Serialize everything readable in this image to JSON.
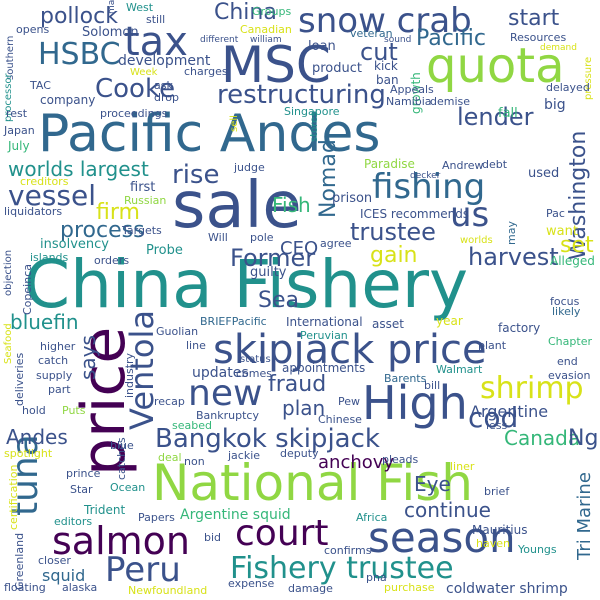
{
  "palette": {
    "purple": "#440154",
    "indigo": "#3b528b",
    "blue": "#31688e",
    "teal": "#21918c",
    "green": "#35b779",
    "lime": "#90d743",
    "yellow": "#d8e219"
  },
  "words": [
    {
      "text": "China Fishery",
      "color": "teal"
    },
    {
      "text": "Pacific Andes",
      "color": "blue"
    },
    {
      "text": "sale",
      "color": "indigo"
    },
    {
      "text": "National Fish",
      "color": "lime"
    },
    {
      "text": "skipjack price",
      "color": "indigo"
    },
    {
      "text": "price",
      "color": "purple"
    },
    {
      "text": "MSC",
      "color": "indigo"
    },
    {
      "text": "quota",
      "color": "lime"
    },
    {
      "text": "season",
      "color": "indigo"
    },
    {
      "text": "tax",
      "color": "indigo"
    },
    {
      "text": "snow crab",
      "color": "indigo"
    },
    {
      "text": "High",
      "color": "indigo"
    },
    {
      "text": "court",
      "color": "purple"
    },
    {
      "text": "salmon",
      "color": "purple"
    },
    {
      "text": "tuna",
      "color": "blue"
    },
    {
      "text": "new",
      "color": "indigo"
    },
    {
      "text": "fishing",
      "color": "blue"
    },
    {
      "text": "Fishery trustee",
      "color": "teal"
    },
    {
      "text": "Peru",
      "color": "indigo"
    },
    {
      "text": "Ventola",
      "color": "indigo"
    },
    {
      "text": "HSBC",
      "color": "blue"
    },
    {
      "text": "restructuring",
      "color": "indigo"
    },
    {
      "text": "Cooke",
      "color": "indigo"
    },
    {
      "text": "Bangkok skipjack",
      "color": "indigo"
    },
    {
      "text": "shrimp",
      "color": "yellow"
    },
    {
      "text": "us",
      "color": "indigo"
    },
    {
      "text": "vessel",
      "color": "indigo"
    },
    {
      "text": "trustee",
      "color": "indigo"
    },
    {
      "text": "cod",
      "color": "indigo"
    },
    {
      "text": "rise",
      "color": "indigo"
    },
    {
      "text": "Pacific",
      "color": "blue"
    },
    {
      "text": "cut",
      "color": "indigo"
    },
    {
      "text": "lender",
      "color": "indigo"
    },
    {
      "text": "start",
      "color": "indigo"
    },
    {
      "text": "Washington",
      "color": "indigo"
    },
    {
      "text": "pollock",
      "color": "indigo"
    },
    {
      "text": "China",
      "color": "indigo"
    },
    {
      "text": "worlds largest",
      "color": "teal"
    },
    {
      "text": "Former",
      "color": "indigo"
    },
    {
      "text": "firm",
      "color": "yellow"
    },
    {
      "text": "Nomad",
      "color": "blue"
    },
    {
      "text": "process",
      "color": "blue"
    },
    {
      "text": "harvest",
      "color": "indigo"
    },
    {
      "text": "gain",
      "color": "yellow"
    },
    {
      "text": "set",
      "color": "yellow"
    },
    {
      "text": "bluefin",
      "color": "teal"
    },
    {
      "text": "Sea",
      "color": "indigo"
    },
    {
      "text": "fraud",
      "color": "indigo"
    },
    {
      "text": "says",
      "color": "indigo"
    },
    {
      "text": "Canada",
      "color": "green"
    },
    {
      "text": "Ng",
      "color": "indigo"
    },
    {
      "text": "Argentine",
      "color": "indigo"
    },
    {
      "text": "Andes",
      "color": "indigo"
    },
    {
      "text": "continue",
      "color": "indigo"
    },
    {
      "text": "Eye",
      "color": "indigo"
    },
    {
      "text": "anchovy",
      "color": "purple"
    },
    {
      "text": "Tri Marine",
      "color": "blue"
    },
    {
      "text": "Fish",
      "color": "green"
    },
    {
      "text": "CEO",
      "color": "indigo"
    },
    {
      "text": "plan",
      "color": "indigo"
    },
    {
      "text": "updates",
      "color": "indigo"
    },
    {
      "text": "squid",
      "color": "blue"
    },
    {
      "text": "coldwater shrimp",
      "color": "indigo"
    },
    {
      "text": "Argentine squid",
      "color": "green"
    },
    {
      "text": "Solomon",
      "color": "indigo"
    },
    {
      "text": "development",
      "color": "indigo"
    },
    {
      "text": "product",
      "color": "indigo"
    },
    {
      "text": "loan",
      "color": "indigo"
    },
    {
      "text": "kick",
      "color": "indigo"
    },
    {
      "text": "ban",
      "color": "indigo"
    },
    {
      "text": "growth",
      "color": "green"
    },
    {
      "text": "big",
      "color": "indigo"
    },
    {
      "text": "fall",
      "color": "green"
    },
    {
      "text": "Japan",
      "color": "indigo"
    },
    {
      "text": "July",
      "color": "green"
    },
    {
      "text": "used",
      "color": "indigo"
    },
    {
      "text": "want",
      "color": "yellow"
    },
    {
      "text": "Singapore",
      "color": "teal"
    },
    {
      "text": "Paradise",
      "color": "lime"
    },
    {
      "text": "Andrew",
      "color": "indigo"
    },
    {
      "text": "debt",
      "color": "indigo"
    },
    {
      "text": "prison",
      "color": "indigo"
    },
    {
      "text": "ICES recommends",
      "color": "indigo"
    },
    {
      "text": "first",
      "color": "indigo"
    },
    {
      "text": "Russian",
      "color": "lime"
    },
    {
      "text": "Targets",
      "color": "indigo"
    },
    {
      "text": "Will",
      "color": "indigo"
    },
    {
      "text": "pole",
      "color": "indigo"
    },
    {
      "text": "agree",
      "color": "indigo"
    },
    {
      "text": "insolvency",
      "color": "teal"
    },
    {
      "text": "Probe",
      "color": "teal"
    },
    {
      "text": "orders",
      "color": "indigo"
    },
    {
      "text": "guilty",
      "color": "indigo"
    },
    {
      "text": "Alleged",
      "color": "green"
    },
    {
      "text": "may",
      "color": "blue"
    },
    {
      "text": "Copeinca",
      "color": "indigo"
    },
    {
      "text": "Guolian",
      "color": "indigo"
    },
    {
      "text": "BRIEFPacific",
      "color": "blue"
    },
    {
      "text": "International",
      "color": "indigo"
    },
    {
      "text": "asset",
      "color": "indigo"
    },
    {
      "text": "year",
      "color": "yellow"
    },
    {
      "text": "Peruvian",
      "color": "teal"
    },
    {
      "text": "factory",
      "color": "indigo"
    },
    {
      "text": "Chapter",
      "color": "green"
    },
    {
      "text": "focus",
      "color": "indigo"
    },
    {
      "text": "likely",
      "color": "blue"
    },
    {
      "text": "higher",
      "color": "indigo"
    },
    {
      "text": "catch",
      "color": "indigo"
    },
    {
      "text": "supply",
      "color": "indigo"
    },
    {
      "text": "part",
      "color": "indigo"
    },
    {
      "text": "hold",
      "color": "indigo"
    },
    {
      "text": "Puts",
      "color": "lime"
    },
    {
      "text": "line",
      "color": "indigo"
    },
    {
      "text": "plant",
      "color": "indigo"
    },
    {
      "text": "Walmart",
      "color": "teal"
    },
    {
      "text": "end",
      "color": "indigo"
    },
    {
      "text": "evasion",
      "color": "indigo"
    },
    {
      "text": "appointments",
      "color": "indigo"
    },
    {
      "text": "comes",
      "color": "indigo"
    },
    {
      "text": "Barents",
      "color": "blue"
    },
    {
      "text": "bill",
      "color": "indigo"
    },
    {
      "text": "recap",
      "color": "indigo"
    },
    {
      "text": "Bankruptcy",
      "color": "indigo"
    },
    {
      "text": "Pew",
      "color": "indigo"
    },
    {
      "text": "Chinese",
      "color": "indigo"
    },
    {
      "text": "less",
      "color": "indigo"
    },
    {
      "text": "deputy",
      "color": "indigo"
    },
    {
      "text": "pleads",
      "color": "indigo"
    },
    {
      "text": "liner",
      "color": "yellow"
    },
    {
      "text": "brief",
      "color": "indigo"
    },
    {
      "text": "seabed",
      "color": "green"
    },
    {
      "text": "deal",
      "color": "lime"
    },
    {
      "text": "non",
      "color": "indigo"
    },
    {
      "text": "jackie",
      "color": "indigo"
    },
    {
      "text": "blue",
      "color": "indigo"
    },
    {
      "text": "catches",
      "color": "indigo"
    },
    {
      "text": "spotlight",
      "color": "yellow"
    },
    {
      "text": "prince",
      "color": "indigo"
    },
    {
      "text": "Star",
      "color": "indigo"
    },
    {
      "text": "Ocean",
      "color": "teal"
    },
    {
      "text": "editors",
      "color": "teal"
    },
    {
      "text": "Trident",
      "color": "teal"
    },
    {
      "text": "Papers",
      "color": "indigo"
    },
    {
      "text": "Africa",
      "color": "teal"
    },
    {
      "text": "Mauritius",
      "color": "indigo"
    },
    {
      "text": "haven",
      "color": "yellow"
    },
    {
      "text": "Youngs",
      "color": "teal"
    },
    {
      "text": "bid",
      "color": "indigo"
    },
    {
      "text": "confirms",
      "color": "indigo"
    },
    {
      "text": "Greenland",
      "color": "indigo"
    },
    {
      "text": "closer",
      "color": "indigo"
    },
    {
      "text": "floating",
      "color": "indigo"
    },
    {
      "text": "alaska",
      "color": "indigo"
    },
    {
      "text": "Newfoundland",
      "color": "yellow"
    },
    {
      "text": "expense",
      "color": "indigo"
    },
    {
      "text": "damage",
      "color": "indigo"
    },
    {
      "text": "pna",
      "color": "indigo"
    },
    {
      "text": "purchase",
      "color": "yellow"
    },
    {
      "text": "West",
      "color": "teal"
    },
    {
      "text": "ma",
      "color": "indigo"
    },
    {
      "text": "still",
      "color": "indigo"
    },
    {
      "text": "Groups",
      "color": "green"
    },
    {
      "text": "Canadian",
      "color": "yellow"
    },
    {
      "text": "different",
      "color": "indigo"
    },
    {
      "text": "william",
      "color": "indigo"
    },
    {
      "text": "veteran",
      "color": "blue"
    },
    {
      "text": "sound",
      "color": "indigo"
    },
    {
      "text": "Resources",
      "color": "indigo"
    },
    {
      "text": "demand",
      "color": "yellow"
    },
    {
      "text": "opens",
      "color": "indigo"
    },
    {
      "text": "southern",
      "color": "indigo"
    },
    {
      "text": "pressure",
      "color": "yellow"
    },
    {
      "text": "TAC",
      "color": "indigo"
    },
    {
      "text": "Week",
      "color": "yellow"
    },
    {
      "text": "charges",
      "color": "indigo"
    },
    {
      "text": "delayed",
      "color": "indigo"
    },
    {
      "text": "processor",
      "color": "teal"
    },
    {
      "text": "company",
      "color": "indigo"
    },
    {
      "text": "ask",
      "color": "indigo"
    },
    {
      "text": "drop",
      "color": "indigo"
    },
    {
      "text": "Appeals",
      "color": "indigo"
    },
    {
      "text": "Namibia",
      "color": "indigo"
    },
    {
      "text": "demise",
      "color": "indigo"
    },
    {
      "text": "rest",
      "color": "indigo"
    },
    {
      "text": "proceedings",
      "color": "indigo"
    },
    {
      "text": "sell",
      "color": "yellow"
    },
    {
      "text": "stores",
      "color": "teal"
    },
    {
      "text": "judge",
      "color": "indigo"
    },
    {
      "text": "decker",
      "color": "indigo"
    },
    {
      "text": "creditors",
      "color": "yellow"
    },
    {
      "text": "liquidators",
      "color": "indigo"
    },
    {
      "text": "Pac",
      "color": "indigo"
    },
    {
      "text": "objection",
      "color": "indigo"
    },
    {
      "text": "islands",
      "color": "teal"
    },
    {
      "text": "worlds",
      "color": "yellow"
    },
    {
      "text": "Seafood",
      "color": "yellow"
    },
    {
      "text": "industry",
      "color": "indigo"
    },
    {
      "text": "deliveries",
      "color": "indigo"
    },
    {
      "text": "status",
      "color": "indigo"
    },
    {
      "text": "certification",
      "color": "yellow"
    }
  ]
}
